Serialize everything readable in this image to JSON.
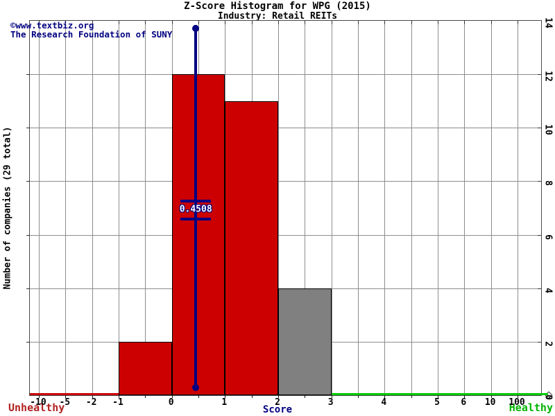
{
  "page": {
    "title": "Z-Score Histogram for WPG (2015)",
    "subtitle": "Industry: Retail REITs"
  },
  "watermark": {
    "line1": "©www.textbiz.org",
    "line2": "The Research Foundation of SUNY"
  },
  "axis_titles": {
    "x": "Score",
    "y": "Number of companies (29 total)"
  },
  "zone_labels": {
    "unhealthy": "Unhealthy",
    "healthy": "Healthy"
  },
  "chart_data": {
    "type": "bar",
    "title": "Z-Score Histogram for WPG (2015)",
    "subtitle": "Industry: Retail REITs",
    "xlabel": "Score",
    "ylabel": "Number of companies (29 total)",
    "total_companies": 29,
    "x_tick_labels": [
      "-10",
      "-5",
      "-2",
      "-1",
      "0",
      "1",
      "2",
      "3",
      "4",
      "5",
      "6",
      "10",
      "100"
    ],
    "y_tick_labels": [
      "0",
      "2",
      "4",
      "6",
      "8",
      "10",
      "12",
      "14"
    ],
    "ylim": [
      0,
      14
    ],
    "grid": true,
    "legend": "none",
    "bars": [
      {
        "bin_start": "-1",
        "bin_end": "0",
        "count": 2,
        "color_key": "bar_red"
      },
      {
        "bin_start": "0",
        "bin_end": "1",
        "count": 12,
        "color_key": "bar_red"
      },
      {
        "bin_start": "1",
        "bin_end": "2",
        "count": 11,
        "color_key": "bar_red"
      },
      {
        "bin_start": "2",
        "bin_end": "3",
        "count": 4,
        "color_key": "bar_gray"
      }
    ],
    "company_marker": {
      "value": 0.4508,
      "label": "0.4508",
      "between_ticks": [
        "0",
        "1"
      ]
    },
    "zones": {
      "unhealthy_line_end_tick": "-1",
      "healthy_line_start_tick": "3"
    }
  },
  "colors": {
    "bar_red": "#cc0000",
    "bar_gray": "#808080",
    "bar_border": "#000000",
    "marker_navy": "#000080",
    "watermark_navy": "#000080",
    "score_label_navy": "#000080",
    "unhealthy_text": "#b22222",
    "unhealthy_line": "#cc0000",
    "healthy_text": "#00b400",
    "healthy_line": "#00c800",
    "grid_gray": "#8c8c8c",
    "border_gray": "#484848",
    "text_black": "#000000",
    "background": "#ffffff"
  }
}
